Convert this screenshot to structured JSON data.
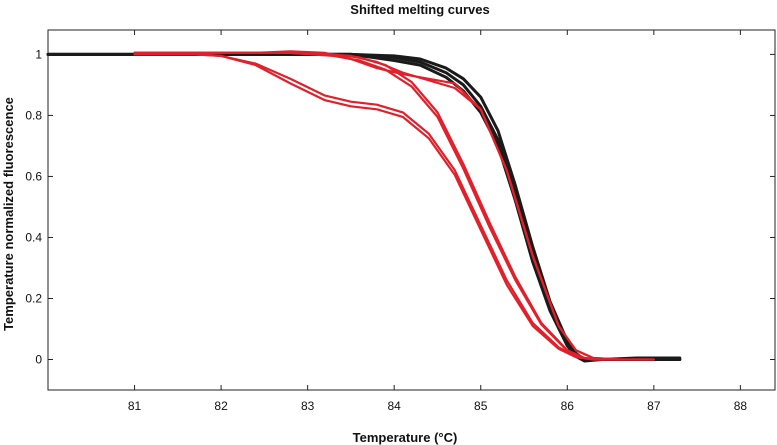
{
  "chart_data": {
    "type": "line",
    "title": "Shifted melting curves",
    "xlabel": "Temperature (°C)",
    "ylabel": "Temperature normalized fluorescence",
    "xlim": [
      80.0,
      88.4
    ],
    "ylim": [
      -0.1,
      1.08
    ],
    "xticks": [
      81,
      82,
      83,
      84,
      85,
      86,
      87,
      88
    ],
    "yticks": [
      0,
      0.2,
      0.4,
      0.6,
      0.8,
      1
    ],
    "ytick_labels": [
      "0",
      "0.2",
      "0.4",
      "0.6",
      "0.8",
      "1"
    ],
    "grid": false,
    "series": [
      {
        "name": "black-curve-1",
        "color": "#1a1a1a",
        "x": [
          80.0,
          81,
          82,
          83,
          83.5,
          84,
          84.3,
          84.6,
          84.8,
          85.0,
          85.2,
          85.4,
          85.6,
          85.8,
          86.0,
          86.1,
          86.2,
          86.4,
          86.8,
          87.3
        ],
        "y": [
          1.0,
          1.0,
          1.0,
          1.0,
          1.0,
          0.995,
          0.985,
          0.955,
          0.92,
          0.86,
          0.75,
          0.57,
          0.37,
          0.19,
          0.06,
          0.02,
          0.0,
          0.0,
          0.0,
          0.0
        ]
      },
      {
        "name": "black-curve-2",
        "color": "#1a1a1a",
        "x": [
          80.0,
          81,
          82,
          83,
          83.5,
          84,
          84.3,
          84.6,
          84.8,
          85.0,
          85.2,
          85.4,
          85.6,
          85.8,
          86.0,
          86.1,
          86.2,
          86.4,
          86.8,
          87.3
        ],
        "y": [
          1.0,
          1.0,
          1.0,
          1.0,
          1.0,
          0.99,
          0.975,
          0.94,
          0.9,
          0.83,
          0.72,
          0.54,
          0.34,
          0.17,
          0.05,
          0.015,
          0.0,
          0.0,
          0.0,
          0.0
        ]
      },
      {
        "name": "black-curve-3",
        "color": "#1a1a1a",
        "x": [
          80.0,
          81,
          82,
          83,
          83.5,
          84,
          84.3,
          84.6,
          84.8,
          85.0,
          85.2,
          85.4,
          85.6,
          85.8,
          86.0,
          86.1,
          86.2,
          86.4,
          86.8,
          87.3
        ],
        "y": [
          1.0,
          1.0,
          1.0,
          1.0,
          1.0,
          0.98,
          0.965,
          0.925,
          0.88,
          0.81,
          0.7,
          0.52,
          0.32,
          0.16,
          0.045,
          0.01,
          -0.005,
          0.0,
          0.005,
          0.005
        ]
      },
      {
        "name": "red-curve-1",
        "color": "#e0202a",
        "x": [
          81,
          81.7,
          82,
          82.4,
          82.8,
          83.2,
          83.5,
          83.8,
          84.1,
          84.4,
          84.7,
          85.0,
          85.3,
          85.6,
          85.9,
          86.1,
          86.3,
          86.6
        ],
        "y": [
          1.0,
          1.0,
          0.995,
          0.97,
          0.92,
          0.865,
          0.845,
          0.835,
          0.81,
          0.74,
          0.62,
          0.44,
          0.26,
          0.12,
          0.04,
          0.01,
          0.0,
          0.0
        ]
      },
      {
        "name": "red-curve-2",
        "color": "#e0202a",
        "x": [
          81,
          81.7,
          82,
          82.4,
          82.8,
          83.2,
          83.5,
          83.8,
          84.1,
          84.4,
          84.7,
          85.0,
          85.3,
          85.6,
          85.9,
          86.1,
          86.3,
          86.6
        ],
        "y": [
          1.0,
          1.0,
          0.995,
          0.965,
          0.905,
          0.85,
          0.83,
          0.82,
          0.795,
          0.725,
          0.605,
          0.425,
          0.245,
          0.11,
          0.035,
          0.008,
          0.0,
          0.0
        ]
      },
      {
        "name": "red-curve-3",
        "color": "#e0202a",
        "x": [
          81,
          81.8,
          82.4,
          82.8,
          83.2,
          83.5,
          83.8,
          84.1,
          84.4,
          84.7,
          85.0,
          85.3,
          85.6,
          85.9,
          86.1,
          86.3,
          86.6,
          87.0
        ],
        "y": [
          1.005,
          1.005,
          1.005,
          1.005,
          1.0,
          0.995,
          0.975,
          0.94,
          0.915,
          0.89,
          0.82,
          0.62,
          0.34,
          0.11,
          0.03,
          0.005,
          0.0,
          0.0
        ]
      },
      {
        "name": "red-curve-4",
        "color": "#e0202a",
        "x": [
          81,
          81.8,
          82.4,
          82.8,
          83.2,
          83.5,
          83.8,
          84.1,
          84.4,
          84.7,
          85.0,
          85.3,
          85.6,
          85.9,
          86.1,
          86.3,
          86.6,
          87.0
        ],
        "y": [
          1.005,
          1.005,
          1.005,
          1.01,
          1.005,
          0.985,
          0.955,
          0.935,
          0.92,
          0.905,
          0.82,
          0.62,
          0.34,
          0.11,
          0.03,
          0.005,
          0.0,
          0.0
        ]
      },
      {
        "name": "red-curve-5",
        "color": "#e0202a",
        "x": [
          81,
          82,
          82.8,
          83.3,
          83.6,
          83.9,
          84.2,
          84.5,
          84.8,
          85.1,
          85.4,
          85.7,
          86.0,
          86.2,
          86.4
        ],
        "y": [
          1.005,
          1.005,
          1.005,
          1.0,
          0.99,
          0.965,
          0.91,
          0.81,
          0.64,
          0.45,
          0.27,
          0.12,
          0.03,
          0.005,
          0.0
        ]
      },
      {
        "name": "red-curve-6",
        "color": "#e0202a",
        "x": [
          81,
          82,
          82.8,
          83.3,
          83.6,
          83.9,
          84.2,
          84.5,
          84.8,
          85.1,
          85.4,
          85.7,
          86.0,
          86.2,
          86.4
        ],
        "y": [
          1.005,
          1.005,
          1.005,
          0.995,
          0.98,
          0.95,
          0.895,
          0.795,
          0.625,
          0.435,
          0.26,
          0.115,
          0.028,
          0.004,
          0.0
        ]
      }
    ]
  }
}
